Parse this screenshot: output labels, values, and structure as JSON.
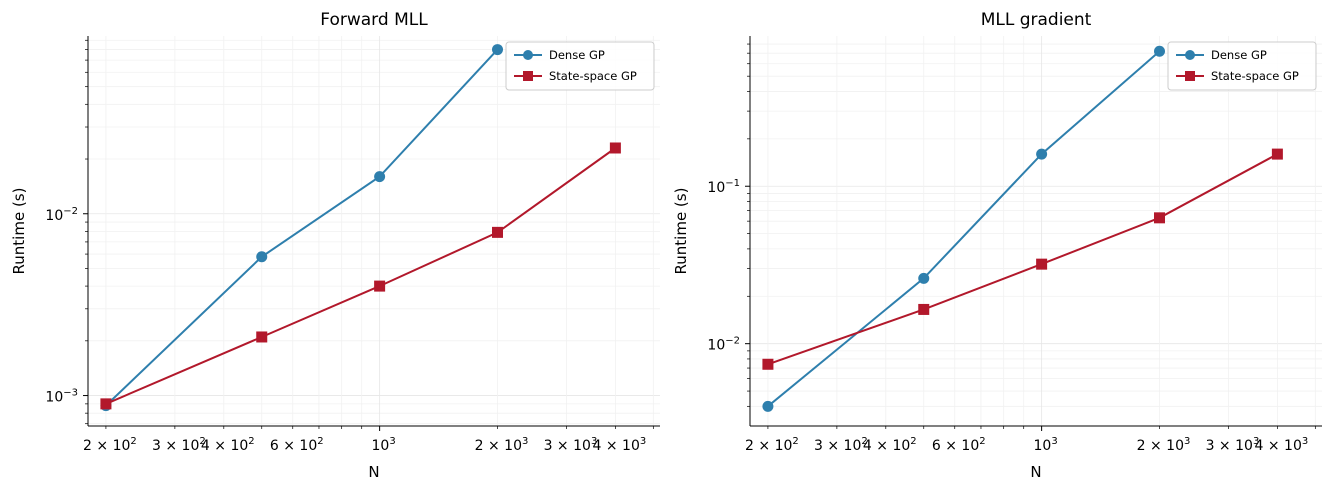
{
  "chart_data": [
    {
      "type": "line",
      "title": "Forward MLL",
      "xlabel": "N",
      "ylabel": "Runtime (s)",
      "xscale": "log",
      "yscale": "log",
      "xlim": [
        180,
        5200
      ],
      "ylim": [
        0.00068,
        0.095
      ],
      "grid": true,
      "legend_position": "top-right",
      "x_ticks": [
        {
          "value": 200,
          "base": "2 × 10",
          "exp": "2"
        },
        {
          "value": 300,
          "base": "3 × 10",
          "exp": "2"
        },
        {
          "value": 400,
          "base": "4 × 10",
          "exp": "2"
        },
        {
          "value": 600,
          "base": "6 × 10",
          "exp": "2"
        },
        {
          "value": 1000,
          "base": "10",
          "exp": "3"
        },
        {
          "value": 2000,
          "base": "2 × 10",
          "exp": "3"
        },
        {
          "value": 3000,
          "base": "3 × 10",
          "exp": "3"
        },
        {
          "value": 4000,
          "base": "4 × 10",
          "exp": "3"
        }
      ],
      "y_ticks": [
        {
          "value": 0.001,
          "base": "10",
          "exp": "−3"
        },
        {
          "value": 0.01,
          "base": "10",
          "exp": "−2"
        }
      ],
      "series": [
        {
          "name": "Dense GP",
          "color": "#2e7fad",
          "marker": "circle",
          "x": [
            200,
            500,
            1000,
            2000
          ],
          "y": [
            0.00088,
            0.0058,
            0.016,
            0.08
          ]
        },
        {
          "name": "State-space GP",
          "color": "#b2182b",
          "marker": "square",
          "x": [
            200,
            500,
            1000,
            2000,
            4000
          ],
          "y": [
            0.0009,
            0.0021,
            0.004,
            0.0079,
            0.023
          ]
        }
      ]
    },
    {
      "type": "line",
      "title": "MLL gradient",
      "xlabel": "N",
      "ylabel": "Runtime (s)",
      "xscale": "log",
      "yscale": "log",
      "xlim": [
        180,
        5200
      ],
      "ylim": [
        0.003,
        0.9
      ],
      "grid": true,
      "legend_position": "top-right",
      "x_ticks": [
        {
          "value": 200,
          "base": "2 × 10",
          "exp": "2"
        },
        {
          "value": 300,
          "base": "3 × 10",
          "exp": "2"
        },
        {
          "value": 400,
          "base": "4 × 10",
          "exp": "2"
        },
        {
          "value": 600,
          "base": "6 × 10",
          "exp": "2"
        },
        {
          "value": 1000,
          "base": "10",
          "exp": "3"
        },
        {
          "value": 2000,
          "base": "2 × 10",
          "exp": "3"
        },
        {
          "value": 3000,
          "base": "3 × 10",
          "exp": "3"
        },
        {
          "value": 4000,
          "base": "4 × 10",
          "exp": "3"
        }
      ],
      "y_ticks": [
        {
          "value": 0.01,
          "base": "10",
          "exp": "−2"
        },
        {
          "value": 0.1,
          "base": "10",
          "exp": "−1"
        }
      ],
      "series": [
        {
          "name": "Dense GP",
          "color": "#2e7fad",
          "marker": "circle",
          "x": [
            200,
            500,
            1000,
            2000
          ],
          "y": [
            0.004,
            0.026,
            0.16,
            0.72
          ]
        },
        {
          "name": "State-space GP",
          "color": "#b2182b",
          "marker": "square",
          "x": [
            200,
            500,
            1000,
            2000,
            4000
          ],
          "y": [
            0.0074,
            0.0165,
            0.032,
            0.063,
            0.16
          ]
        }
      ]
    }
  ]
}
